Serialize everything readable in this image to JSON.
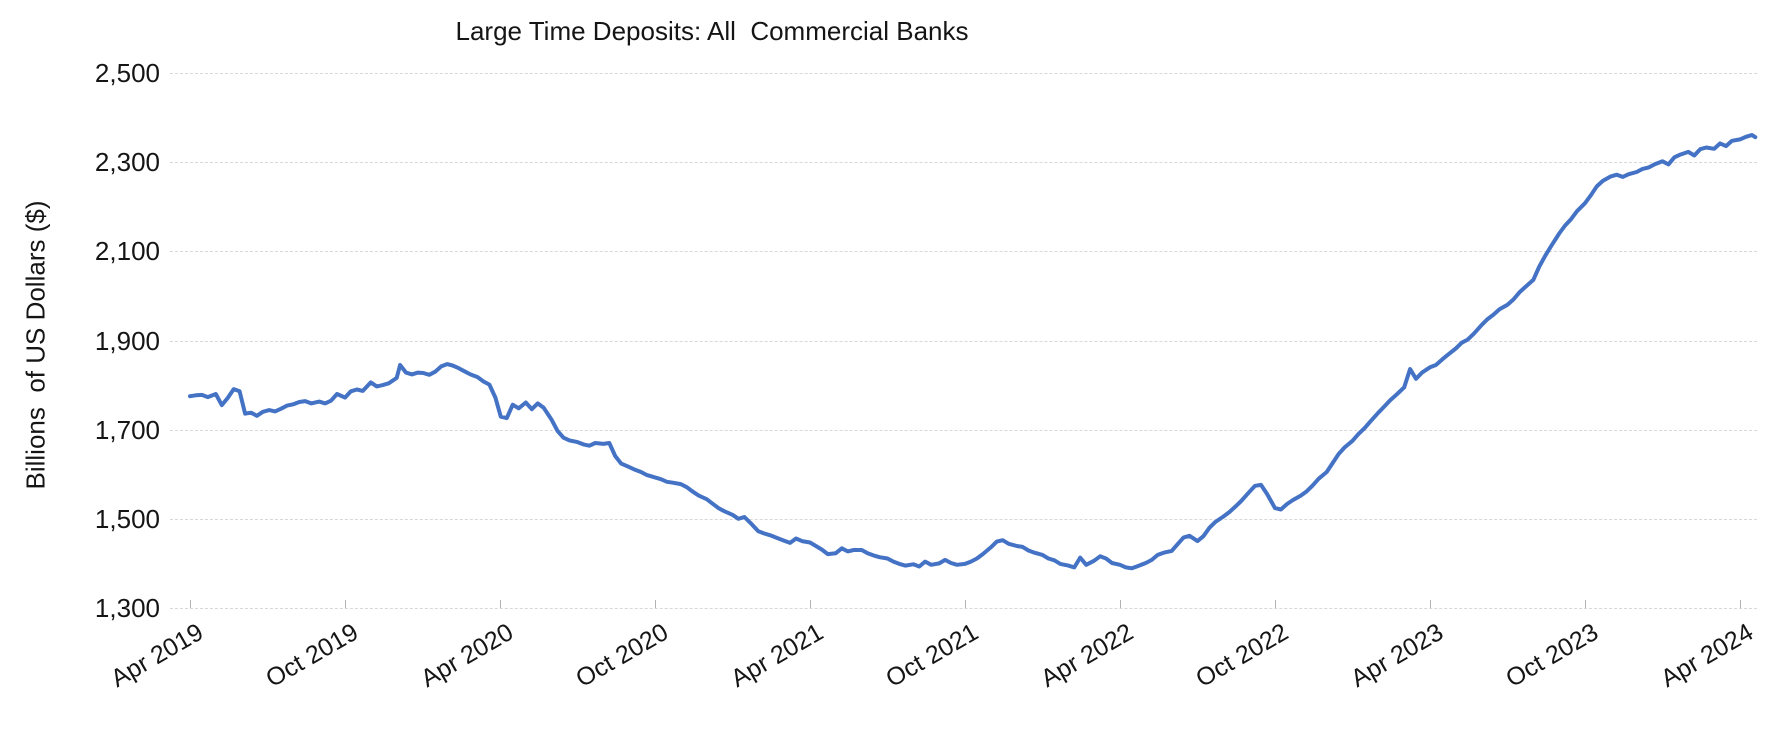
{
  "window": {
    "background": "#ffffff"
  },
  "chart_data": {
    "type": "line",
    "title": "Large Time Deposits: All  Commercial Banks",
    "xlabel": "",
    "ylabel": "Billions  of US Dollars ($)",
    "legend": false,
    "grid": true,
    "line_color": "#4472C4",
    "grid_color": "#d8d8d8",
    "tick_color": "#b3b3b3",
    "text_color": "#151515",
    "ylim": [
      1300,
      2500
    ],
    "y_ticks": [
      2500,
      2300,
      2100,
      1900,
      1700,
      1500,
      1300
    ],
    "y_tick_labels": [
      "2,500",
      "2,300",
      "2,100",
      "1,900",
      "1,700",
      "1,500",
      "1,300"
    ],
    "x_tick_labels": [
      "Apr 2019",
      "Oct 2019",
      "Apr 2020",
      "Oct 2020",
      "Apr 2021",
      "Oct 2021",
      "Apr 2022",
      "Oct 2022",
      "Apr 2023",
      "Oct 2023",
      "Apr 2024"
    ],
    "x_range": [
      "2019-04-01",
      "2024-04-19"
    ],
    "series_name": "Large Time Deposits, All Commercial Banks",
    "points": [
      [
        "2019-04-01",
        1775
      ],
      [
        "2019-04-08",
        1777
      ],
      [
        "2019-04-15",
        1778
      ],
      [
        "2019-04-22",
        1773
      ],
      [
        "2019-05-01",
        1780
      ],
      [
        "2019-05-08",
        1755
      ],
      [
        "2019-05-15",
        1771
      ],
      [
        "2019-05-22",
        1791
      ],
      [
        "2019-05-29",
        1786
      ],
      [
        "2019-06-05",
        1736
      ],
      [
        "2019-06-12",
        1738
      ],
      [
        "2019-06-19",
        1731
      ],
      [
        "2019-06-26",
        1740
      ],
      [
        "2019-07-03",
        1744
      ],
      [
        "2019-07-10",
        1741
      ],
      [
        "2019-07-17",
        1747
      ],
      [
        "2019-07-24",
        1754
      ],
      [
        "2019-08-01",
        1757
      ],
      [
        "2019-08-08",
        1762
      ],
      [
        "2019-08-15",
        1764
      ],
      [
        "2019-08-22",
        1759
      ],
      [
        "2019-09-01",
        1763
      ],
      [
        "2019-09-08",
        1759
      ],
      [
        "2019-09-15",
        1765
      ],
      [
        "2019-09-22",
        1780
      ],
      [
        "2019-10-01",
        1772
      ],
      [
        "2019-10-08",
        1786
      ],
      [
        "2019-10-15",
        1790
      ],
      [
        "2019-10-22",
        1787
      ],
      [
        "2019-11-01",
        1806
      ],
      [
        "2019-11-08",
        1797
      ],
      [
        "2019-11-15",
        1800
      ],
      [
        "2019-11-22",
        1804
      ],
      [
        "2019-12-01",
        1816
      ],
      [
        "2019-12-05",
        1845
      ],
      [
        "2019-12-12",
        1828
      ],
      [
        "2019-12-19",
        1824
      ],
      [
        "2019-12-26",
        1828
      ],
      [
        "2020-01-02",
        1827
      ],
      [
        "2020-01-09",
        1823
      ],
      [
        "2020-01-16",
        1830
      ],
      [
        "2020-01-23",
        1842
      ],
      [
        "2020-01-30",
        1847
      ],
      [
        "2020-02-06",
        1844
      ],
      [
        "2020-02-13",
        1838
      ],
      [
        "2020-02-20",
        1831
      ],
      [
        "2020-02-27",
        1824
      ],
      [
        "2020-03-05",
        1818
      ],
      [
        "2020-03-12",
        1808
      ],
      [
        "2020-03-19",
        1801
      ],
      [
        "2020-03-26",
        1772
      ],
      [
        "2020-04-02",
        1729
      ],
      [
        "2020-04-09",
        1726
      ],
      [
        "2020-04-16",
        1756
      ],
      [
        "2020-04-23",
        1748
      ],
      [
        "2020-05-01",
        1761
      ],
      [
        "2020-05-08",
        1746
      ],
      [
        "2020-05-15",
        1759
      ],
      [
        "2020-05-22",
        1749
      ],
      [
        "2020-06-01",
        1722
      ],
      [
        "2020-06-08",
        1697
      ],
      [
        "2020-06-15",
        1682
      ],
      [
        "2020-06-22",
        1676
      ],
      [
        "2020-07-01",
        1672
      ],
      [
        "2020-07-08",
        1667
      ],
      [
        "2020-07-15",
        1664
      ],
      [
        "2020-07-22",
        1670
      ],
      [
        "2020-08-01",
        1668
      ],
      [
        "2020-08-08",
        1670
      ],
      [
        "2020-08-15",
        1641
      ],
      [
        "2020-08-22",
        1624
      ],
      [
        "2020-09-01",
        1616
      ],
      [
        "2020-09-08",
        1610
      ],
      [
        "2020-09-15",
        1605
      ],
      [
        "2020-09-22",
        1598
      ],
      [
        "2020-10-01",
        1593
      ],
      [
        "2020-10-08",
        1589
      ],
      [
        "2020-10-15",
        1583
      ],
      [
        "2020-10-22",
        1581
      ],
      [
        "2020-11-01",
        1578
      ],
      [
        "2020-11-08",
        1571
      ],
      [
        "2020-11-15",
        1561
      ],
      [
        "2020-11-22",
        1552
      ],
      [
        "2020-12-01",
        1544
      ],
      [
        "2020-12-08",
        1534
      ],
      [
        "2020-12-15",
        1524
      ],
      [
        "2020-12-22",
        1517
      ],
      [
        "2021-01-01",
        1509
      ],
      [
        "2021-01-08",
        1500
      ],
      [
        "2021-01-15",
        1504
      ],
      [
        "2021-01-22",
        1491
      ],
      [
        "2021-02-01",
        1472
      ],
      [
        "2021-02-08",
        1467
      ],
      [
        "2021-02-15",
        1463
      ],
      [
        "2021-02-22",
        1458
      ],
      [
        "2021-03-01",
        1451
      ],
      [
        "2021-03-08",
        1446
      ],
      [
        "2021-03-15",
        1456
      ],
      [
        "2021-03-22",
        1450
      ],
      [
        "2021-04-01",
        1447
      ],
      [
        "2021-04-08",
        1439
      ],
      [
        "2021-04-15",
        1431
      ],
      [
        "2021-04-22",
        1421
      ],
      [
        "2021-05-01",
        1423
      ],
      [
        "2021-05-08",
        1434
      ],
      [
        "2021-05-15",
        1427
      ],
      [
        "2021-05-22",
        1430
      ],
      [
        "2021-06-01",
        1430
      ],
      [
        "2021-06-08",
        1423
      ],
      [
        "2021-06-15",
        1418
      ],
      [
        "2021-06-22",
        1414
      ],
      [
        "2021-07-01",
        1411
      ],
      [
        "2021-07-08",
        1404
      ],
      [
        "2021-07-15",
        1399
      ],
      [
        "2021-07-22",
        1395
      ],
      [
        "2021-08-01",
        1398
      ],
      [
        "2021-08-08",
        1393
      ],
      [
        "2021-08-15",
        1404
      ],
      [
        "2021-08-22",
        1397
      ],
      [
        "2021-09-01",
        1400
      ],
      [
        "2021-09-08",
        1408
      ],
      [
        "2021-09-15",
        1401
      ],
      [
        "2021-09-22",
        1397
      ],
      [
        "2021-10-01",
        1399
      ],
      [
        "2021-10-08",
        1404
      ],
      [
        "2021-10-15",
        1411
      ],
      [
        "2021-10-22",
        1421
      ],
      [
        "2021-11-01",
        1436
      ],
      [
        "2021-11-08",
        1449
      ],
      [
        "2021-11-15",
        1452
      ],
      [
        "2021-11-22",
        1444
      ],
      [
        "2021-12-01",
        1439
      ],
      [
        "2021-12-08",
        1437
      ],
      [
        "2021-12-15",
        1429
      ],
      [
        "2021-12-22",
        1424
      ],
      [
        "2022-01-01",
        1419
      ],
      [
        "2022-01-08",
        1411
      ],
      [
        "2022-01-15",
        1407
      ],
      [
        "2022-01-22",
        1399
      ],
      [
        "2022-02-01",
        1395
      ],
      [
        "2022-02-08",
        1391
      ],
      [
        "2022-02-15",
        1413
      ],
      [
        "2022-02-22",
        1397
      ],
      [
        "2022-03-01",
        1406
      ],
      [
        "2022-03-08",
        1416
      ],
      [
        "2022-03-15",
        1411
      ],
      [
        "2022-03-22",
        1401
      ],
      [
        "2022-04-01",
        1397
      ],
      [
        "2022-04-08",
        1391
      ],
      [
        "2022-04-15",
        1389
      ],
      [
        "2022-04-22",
        1394
      ],
      [
        "2022-05-01",
        1401
      ],
      [
        "2022-05-08",
        1408
      ],
      [
        "2022-05-15",
        1419
      ],
      [
        "2022-05-22",
        1424
      ],
      [
        "2022-06-01",
        1428
      ],
      [
        "2022-06-08",
        1443
      ],
      [
        "2022-06-15",
        1458
      ],
      [
        "2022-06-22",
        1462
      ],
      [
        "2022-07-01",
        1450
      ],
      [
        "2022-07-08",
        1461
      ],
      [
        "2022-07-15",
        1480
      ],
      [
        "2022-07-22",
        1493
      ],
      [
        "2022-08-01",
        1505
      ],
      [
        "2022-08-08",
        1515
      ],
      [
        "2022-08-15",
        1527
      ],
      [
        "2022-08-22",
        1540
      ],
      [
        "2022-09-01",
        1560
      ],
      [
        "2022-09-08",
        1574
      ],
      [
        "2022-09-15",
        1576
      ],
      [
        "2022-09-22",
        1556
      ],
      [
        "2022-10-01",
        1524
      ],
      [
        "2022-10-08",
        1521
      ],
      [
        "2022-10-15",
        1533
      ],
      [
        "2022-10-22",
        1542
      ],
      [
        "2022-11-01",
        1552
      ],
      [
        "2022-11-08",
        1562
      ],
      [
        "2022-11-15",
        1575
      ],
      [
        "2022-11-22",
        1590
      ],
      [
        "2022-12-01",
        1605
      ],
      [
        "2022-12-08",
        1625
      ],
      [
        "2022-12-15",
        1645
      ],
      [
        "2022-12-22",
        1660
      ],
      [
        "2023-01-01",
        1675
      ],
      [
        "2023-01-08",
        1690
      ],
      [
        "2023-01-15",
        1703
      ],
      [
        "2023-01-22",
        1718
      ],
      [
        "2023-02-01",
        1738
      ],
      [
        "2023-02-08",
        1752
      ],
      [
        "2023-02-15",
        1766
      ],
      [
        "2023-02-22",
        1778
      ],
      [
        "2023-03-01",
        1795
      ],
      [
        "2023-03-08",
        1836
      ],
      [
        "2023-03-15",
        1814
      ],
      [
        "2023-03-22",
        1828
      ],
      [
        "2023-04-01",
        1840
      ],
      [
        "2023-04-08",
        1845
      ],
      [
        "2023-04-15",
        1857
      ],
      [
        "2023-04-22",
        1868
      ],
      [
        "2023-05-01",
        1882
      ],
      [
        "2023-05-08",
        1895
      ],
      [
        "2023-05-15",
        1902
      ],
      [
        "2023-05-22",
        1915
      ],
      [
        "2023-06-01",
        1935
      ],
      [
        "2023-06-08",
        1948
      ],
      [
        "2023-06-15",
        1958
      ],
      [
        "2023-06-22",
        1970
      ],
      [
        "2023-07-01",
        1980
      ],
      [
        "2023-07-08",
        1992
      ],
      [
        "2023-07-15",
        2008
      ],
      [
        "2023-07-22",
        2020
      ],
      [
        "2023-08-01",
        2036
      ],
      [
        "2023-08-08",
        2066
      ],
      [
        "2023-08-15",
        2090
      ],
      [
        "2023-08-22",
        2112
      ],
      [
        "2023-09-01",
        2140
      ],
      [
        "2023-09-08",
        2158
      ],
      [
        "2023-09-15",
        2172
      ],
      [
        "2023-09-22",
        2190
      ],
      [
        "2023-10-01",
        2208
      ],
      [
        "2023-10-08",
        2226
      ],
      [
        "2023-10-15",
        2246
      ],
      [
        "2023-10-22",
        2258
      ],
      [
        "2023-11-01",
        2268
      ],
      [
        "2023-11-08",
        2272
      ],
      [
        "2023-11-15",
        2267
      ],
      [
        "2023-11-22",
        2273
      ],
      [
        "2023-12-01",
        2278
      ],
      [
        "2023-12-08",
        2285
      ],
      [
        "2023-12-15",
        2288
      ],
      [
        "2023-12-22",
        2295
      ],
      [
        "2024-01-01",
        2302
      ],
      [
        "2024-01-08",
        2295
      ],
      [
        "2024-01-15",
        2311
      ],
      [
        "2024-01-22",
        2317
      ],
      [
        "2024-02-01",
        2323
      ],
      [
        "2024-02-08",
        2315
      ],
      [
        "2024-02-15",
        2329
      ],
      [
        "2024-02-22",
        2333
      ],
      [
        "2024-03-01",
        2330
      ],
      [
        "2024-03-08",
        2342
      ],
      [
        "2024-03-15",
        2336
      ],
      [
        "2024-03-22",
        2348
      ],
      [
        "2024-04-01",
        2351
      ],
      [
        "2024-04-08",
        2357
      ],
      [
        "2024-04-15",
        2361
      ],
      [
        "2024-04-19",
        2356
      ]
    ]
  }
}
